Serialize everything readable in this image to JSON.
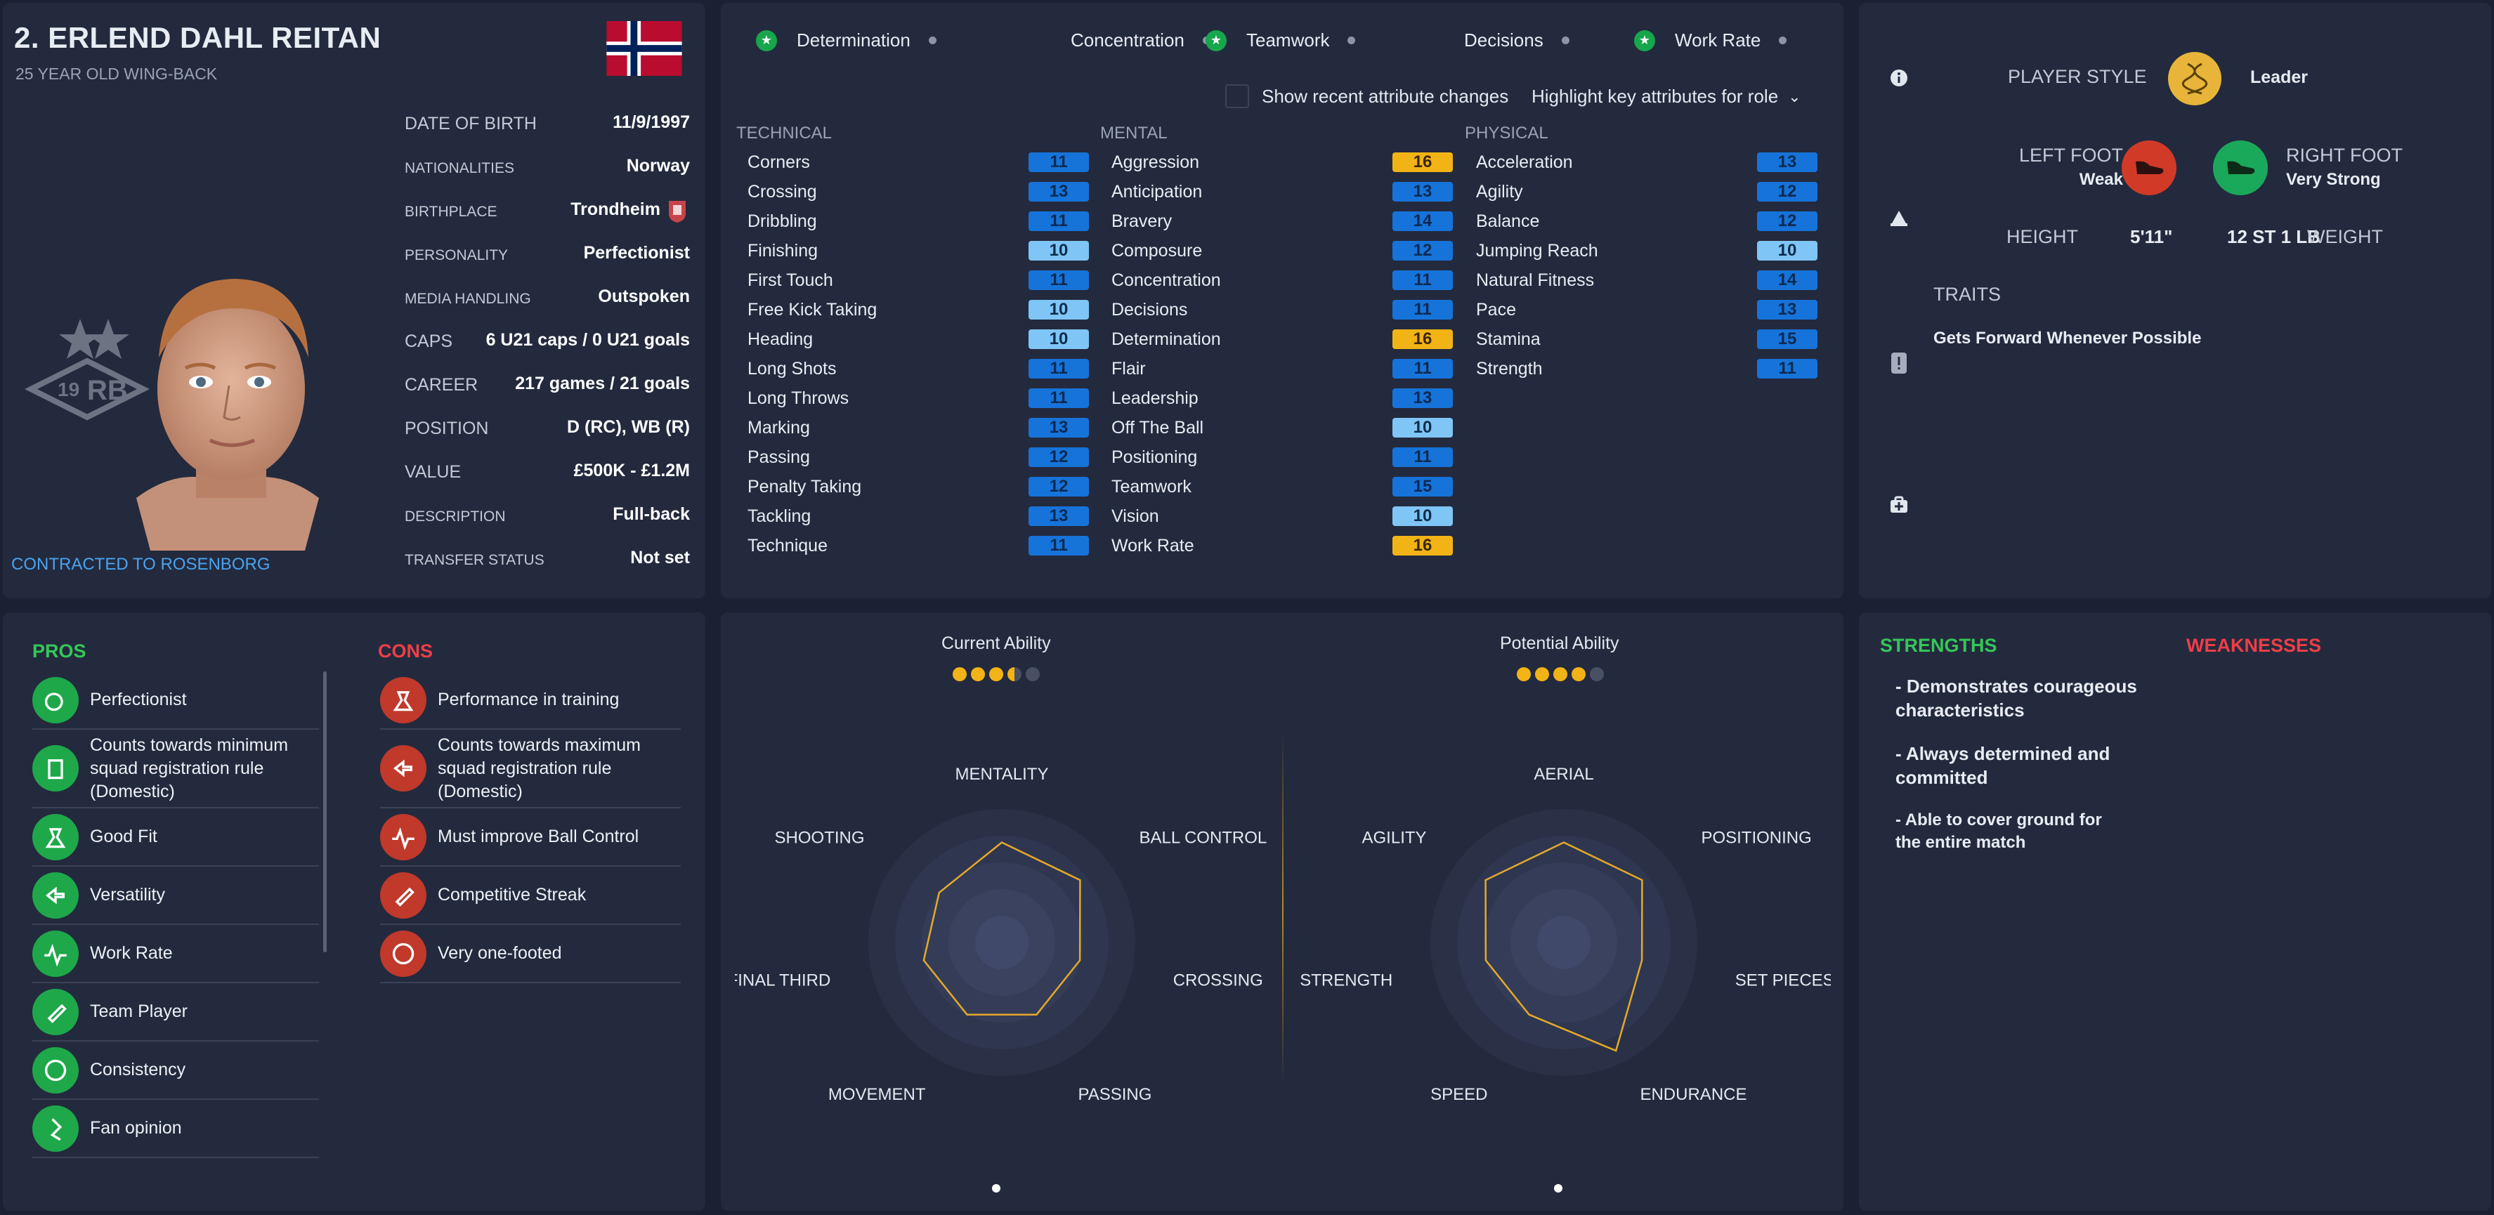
{
  "player": {
    "name": "2. ERLEND DAHL REITAN",
    "subtitle": "25 YEAR OLD WING-BACK",
    "contract": "CONTRACTED TO ROSENBORG",
    "club_badge_text": "19",
    "club_badge_text2": "RB"
  },
  "info": [
    {
      "label": "DATE OF BIRTH",
      "value": "11/9/1997",
      "size": "lg"
    },
    {
      "label": "NATIONALITIES",
      "value": "Norway",
      "size": "sm"
    },
    {
      "label": "BIRTHPLACE",
      "value": "Trondheim",
      "size": "sm"
    },
    {
      "label": "PERSONALITY",
      "value": "Perfectionist",
      "size": "sm"
    },
    {
      "label": "MEDIA HANDLING",
      "value": "Outspoken",
      "size": "sm"
    },
    {
      "label": "CAPS",
      "value": "6 U21 caps / 0 U21 goals",
      "size": "lg"
    },
    {
      "label": "CAREER",
      "value": "217  games /    21 goals",
      "size": "lg"
    },
    {
      "label": "POSITION",
      "value": "D (RC), WB (R)",
      "size": "lg"
    },
    {
      "label": "VALUE",
      "value": "£500K - £1.2M",
      "size": "lg"
    },
    {
      "label": "DESCRIPTION",
      "value": "Full-back",
      "size": "sm"
    },
    {
      "label": "TRANSFER STATUS",
      "value": "Not set",
      "size": "sm"
    }
  ],
  "highlights": [
    {
      "label": "Determination",
      "starred": true
    },
    {
      "label": "Concentration",
      "starred": false
    },
    {
      "label": "Teamwork",
      "starred": true
    },
    {
      "label": "Decisions",
      "starred": false
    },
    {
      "label": "Work Rate",
      "starred": true
    }
  ],
  "controls": {
    "show_changes": "Show recent attribute changes",
    "highlight_dropdown": "Highlight key attributes for role"
  },
  "technical": {
    "title": "TECHNICAL",
    "rows": [
      {
        "name": "Corners",
        "value": "11",
        "tone": "dark"
      },
      {
        "name": "Crossing",
        "value": "13",
        "tone": "dark"
      },
      {
        "name": "Dribbling",
        "value": "11",
        "tone": "dark"
      },
      {
        "name": "Finishing",
        "value": "10",
        "tone": "light"
      },
      {
        "name": "First Touch",
        "value": "11",
        "tone": "dark"
      },
      {
        "name": "Free Kick Taking",
        "value": "10",
        "tone": "light"
      },
      {
        "name": "Heading",
        "value": "10",
        "tone": "light"
      },
      {
        "name": "Long Shots",
        "value": "11",
        "tone": "dark"
      },
      {
        "name": "Long Throws",
        "value": "11",
        "tone": "dark"
      },
      {
        "name": "Marking",
        "value": "13",
        "tone": "dark"
      },
      {
        "name": "Passing",
        "value": "12",
        "tone": "dark"
      },
      {
        "name": "Penalty Taking",
        "value": "12",
        "tone": "dark"
      },
      {
        "name": "Tackling",
        "value": "13",
        "tone": "dark"
      },
      {
        "name": "Technique",
        "value": "11",
        "tone": "dark"
      }
    ]
  },
  "mental": {
    "title": "MENTAL",
    "rows": [
      {
        "name": "Aggression",
        "value": "16",
        "tone": "gold"
      },
      {
        "name": "Anticipation",
        "value": "13",
        "tone": "dark"
      },
      {
        "name": "Bravery",
        "value": "14",
        "tone": "dark"
      },
      {
        "name": "Composure",
        "value": "12",
        "tone": "dark"
      },
      {
        "name": "Concentration",
        "value": "11",
        "tone": "dark"
      },
      {
        "name": "Decisions",
        "value": "11",
        "tone": "dark"
      },
      {
        "name": "Determination",
        "value": "16",
        "tone": "gold"
      },
      {
        "name": "Flair",
        "value": "11",
        "tone": "dark"
      },
      {
        "name": "Leadership",
        "value": "13",
        "tone": "dark"
      },
      {
        "name": "Off The Ball",
        "value": "10",
        "tone": "light"
      },
      {
        "name": "Positioning",
        "value": "11",
        "tone": "dark"
      },
      {
        "name": "Teamwork",
        "value": "15",
        "tone": "dark"
      },
      {
        "name": "Vision",
        "value": "10",
        "tone": "light"
      },
      {
        "name": "Work Rate",
        "value": "16",
        "tone": "gold"
      }
    ]
  },
  "physical": {
    "title": "PHYSICAL",
    "rows": [
      {
        "name": "Acceleration",
        "value": "13",
        "tone": "dark"
      },
      {
        "name": "Agility",
        "value": "12",
        "tone": "dark"
      },
      {
        "name": "Balance",
        "value": "12",
        "tone": "dark"
      },
      {
        "name": "Jumping Reach",
        "value": "10",
        "tone": "light"
      },
      {
        "name": "Natural Fitness",
        "value": "14",
        "tone": "dark"
      },
      {
        "name": "Pace",
        "value": "13",
        "tone": "dark"
      },
      {
        "name": "Stamina",
        "value": "15",
        "tone": "dark"
      },
      {
        "name": "Strength",
        "value": "11",
        "tone": "dark"
      }
    ]
  },
  "profile": {
    "style_label": "PLAYER STYLE",
    "style_value": "Leader",
    "left_foot_label": "LEFT FOOT",
    "left_foot_value": "Weak",
    "right_foot_label": "RIGHT FOOT",
    "right_foot_value": "Very Strong",
    "height_label": "HEIGHT",
    "height_value": "5'11\"",
    "weight_value": "12 ST 1 LB",
    "weight_label": "WEIGHT",
    "traits_title": "TRAITS",
    "traits": [
      "Gets Forward Whenever Possible"
    ]
  },
  "pros": {
    "title": "PROS",
    "items": [
      {
        "text": "Perfectionist",
        "lines": 1
      },
      {
        "text": "Counts towards minimum squad registration rule (Domestic)",
        "lines": 3
      },
      {
        "text": "Good Fit",
        "lines": 1
      },
      {
        "text": "Versatility",
        "lines": 1
      },
      {
        "text": "Work Rate",
        "lines": 1
      },
      {
        "text": "Team Player",
        "lines": 1
      },
      {
        "text": "Consistency",
        "lines": 1
      },
      {
        "text": "Fan opinion",
        "lines": 1
      }
    ]
  },
  "cons": {
    "title": "CONS",
    "items": [
      {
        "text": "Performance in training",
        "lines": 1
      },
      {
        "text": "Counts towards maximum squad registration rule (Domestic)",
        "lines": 3
      },
      {
        "text": "Must improve Ball Control",
        "lines": 1
      },
      {
        "text": "Competitive Streak",
        "lines": 1
      },
      {
        "text": "Very one-footed",
        "lines": 1
      }
    ]
  },
  "ability": {
    "current_label": "Current Ability",
    "current_stars": 3.5,
    "potential_label": "Potential Ability",
    "potential_stars": 4,
    "max_stars": 5
  },
  "radar_left": {
    "labels": [
      "MENTALITY",
      "BALL CONTROL",
      "CROSSING",
      "PASSING",
      "MOVEMENT",
      "FINAL THIRD",
      "SHOOTING"
    ],
    "values": [
      0.75,
      0.75,
      0.6,
      0.6,
      0.6,
      0.6,
      0.6
    ]
  },
  "radar_right": {
    "labels": [
      "AERIAL",
      "POSITIONING",
      "SET PIECES",
      "ENDURANCE",
      "SPEED",
      "STRENGTH",
      "AGILITY"
    ],
    "values": [
      0.75,
      0.75,
      0.6,
      0.9,
      0.6,
      0.6,
      0.75
    ]
  },
  "analysis": {
    "strengths_title": "STRENGTHS",
    "weaknesses_title": "WEAKNESSES",
    "strengths": [
      "- Demonstrates courageous characteristics",
      "- Always determined and committed",
      "- Able to cover ground for the entire match"
    ]
  },
  "colors": {
    "background": "#1b2133",
    "panel": "#232a3d",
    "attr_dark": "#1673d9",
    "attr_light": "#7fc5f5",
    "attr_gold": "#f2b316",
    "star": "#f2b316",
    "pros": "#34c759",
    "cons": "#ef3e48"
  }
}
